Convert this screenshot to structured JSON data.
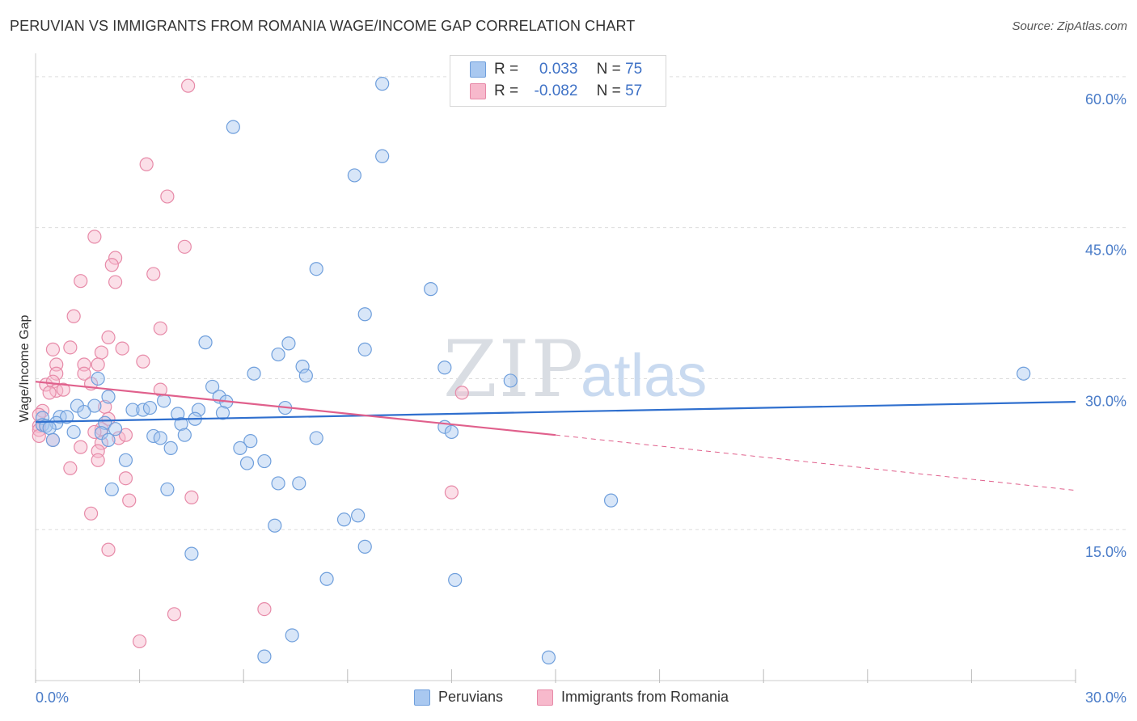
{
  "header": {
    "title": "PERUVIAN VS IMMIGRANTS FROM ROMANIA WAGE/INCOME GAP CORRELATION CHART",
    "source": "Source: ZipAtlas.com"
  },
  "watermark": {
    "zip": "ZIP",
    "atlas": "atlas"
  },
  "legend": {
    "rows": [
      {
        "r_label": "R =",
        "r_value": "0.033",
        "n_label": "N =",
        "n_value": "75"
      },
      {
        "r_label": "R =",
        "r_value": "-0.082",
        "n_label": "N =",
        "n_value": "57"
      }
    ]
  },
  "bottom_legend": {
    "peruvians": "Peruvians",
    "romania": "Immigrants from Romania"
  },
  "colors": {
    "blue_fill": "#a9c8f0",
    "blue_stroke": "#6f9fdc",
    "blue_line": "#2f6fce",
    "pink_fill": "#f7b9cc",
    "pink_stroke": "#e78aa8",
    "pink_line": "#e0608c",
    "grid": "#dddddd",
    "tick_text": "#4a7cc8"
  },
  "chart_data": {
    "type": "scatter",
    "title": "PERUVIAN VS IMMIGRANTS FROM ROMANIA WAGE/INCOME GAP CORRELATION CHART",
    "xlabel": "",
    "ylabel": "Wage/Income Gap",
    "xlim": [
      0,
      30
    ],
    "ylim": [
      0,
      62
    ],
    "x_tick_labels": [
      "0.0%",
      "30.0%"
    ],
    "y_ticks": [
      15,
      30,
      45,
      60
    ],
    "y_tick_labels": [
      "15.0%",
      "30.0%",
      "45.0%",
      "60.0%"
    ],
    "grid": true,
    "series": [
      {
        "name": "Peruvians",
        "r": 0.033,
        "n": 75,
        "trend": {
          "x": [
            0,
            30
          ],
          "y": [
            25.7,
            27.7
          ]
        },
        "points": [
          [
            10.0,
            59.3
          ],
          [
            5.7,
            55.0
          ],
          [
            10.0,
            52.1
          ],
          [
            9.2,
            50.2
          ],
          [
            8.1,
            40.9
          ],
          [
            11.4,
            38.9
          ],
          [
            9.5,
            36.4
          ],
          [
            4.9,
            33.6
          ],
          [
            7.3,
            33.5
          ],
          [
            7.0,
            32.4
          ],
          [
            9.5,
            32.9
          ],
          [
            7.7,
            31.2
          ],
          [
            11.8,
            31.1
          ],
          [
            6.3,
            30.5
          ],
          [
            7.8,
            30.3
          ],
          [
            13.7,
            29.8
          ],
          [
            28.5,
            30.5
          ],
          [
            1.8,
            30.0
          ],
          [
            5.1,
            29.2
          ],
          [
            2.1,
            28.2
          ],
          [
            5.3,
            28.2
          ],
          [
            3.7,
            27.8
          ],
          [
            5.5,
            27.7
          ],
          [
            1.2,
            27.3
          ],
          [
            1.7,
            27.3
          ],
          [
            2.8,
            26.9
          ],
          [
            3.1,
            26.9
          ],
          [
            3.3,
            27.1
          ],
          [
            7.2,
            27.1
          ],
          [
            4.7,
            26.9
          ],
          [
            1.4,
            26.7
          ],
          [
            4.1,
            26.5
          ],
          [
            5.4,
            26.6
          ],
          [
            0.7,
            26.2
          ],
          [
            0.9,
            26.2
          ],
          [
            0.2,
            26.1
          ],
          [
            4.6,
            26.0
          ],
          [
            0.6,
            25.6
          ],
          [
            2.0,
            25.6
          ],
          [
            4.2,
            25.5
          ],
          [
            0.2,
            25.4
          ],
          [
            0.3,
            25.3
          ],
          [
            0.4,
            25.1
          ],
          [
            2.3,
            25.0
          ],
          [
            11.8,
            25.2
          ],
          [
            12.0,
            24.7
          ],
          [
            1.9,
            24.6
          ],
          [
            1.1,
            24.7
          ],
          [
            3.4,
            24.3
          ],
          [
            3.6,
            24.1
          ],
          [
            4.3,
            24.4
          ],
          [
            8.1,
            24.1
          ],
          [
            2.1,
            23.9
          ],
          [
            0.5,
            23.9
          ],
          [
            6.2,
            23.8
          ],
          [
            5.9,
            23.1
          ],
          [
            3.9,
            23.1
          ],
          [
            2.6,
            21.9
          ],
          [
            6.1,
            21.6
          ],
          [
            6.6,
            21.8
          ],
          [
            7.0,
            19.6
          ],
          [
            7.6,
            19.6
          ],
          [
            2.2,
            19.0
          ],
          [
            3.8,
            19.0
          ],
          [
            16.6,
            17.9
          ],
          [
            9.3,
            16.4
          ],
          [
            8.9,
            16.0
          ],
          [
            6.9,
            15.4
          ],
          [
            9.5,
            13.3
          ],
          [
            4.5,
            12.6
          ],
          [
            8.4,
            10.1
          ],
          [
            12.1,
            10.0
          ],
          [
            7.4,
            4.5
          ],
          [
            6.6,
            2.4
          ],
          [
            14.8,
            2.3
          ]
        ]
      },
      {
        "name": "Immigrants from Romania",
        "r": -0.082,
        "n": 57,
        "trend": {
          "x": [
            0,
            15
          ],
          "y": [
            29.7,
            24.4
          ]
        },
        "trend_dashed": {
          "x": [
            15,
            30
          ],
          "y": [
            24.4,
            18.9
          ]
        },
        "points": [
          [
            4.4,
            59.1
          ],
          [
            3.2,
            51.3
          ],
          [
            3.8,
            48.1
          ],
          [
            1.7,
            44.1
          ],
          [
            4.3,
            43.1
          ],
          [
            2.3,
            42.0
          ],
          [
            2.2,
            41.3
          ],
          [
            3.4,
            40.4
          ],
          [
            1.3,
            39.7
          ],
          [
            2.3,
            39.6
          ],
          [
            1.1,
            36.2
          ],
          [
            3.6,
            35.0
          ],
          [
            2.1,
            34.1
          ],
          [
            2.5,
            33.0
          ],
          [
            1.0,
            33.1
          ],
          [
            0.5,
            32.9
          ],
          [
            1.9,
            32.6
          ],
          [
            3.1,
            31.7
          ],
          [
            0.6,
            31.4
          ],
          [
            1.4,
            31.4
          ],
          [
            1.4,
            30.5
          ],
          [
            0.6,
            30.5
          ],
          [
            1.8,
            31.4
          ],
          [
            1.6,
            29.5
          ],
          [
            0.3,
            29.4
          ],
          [
            0.5,
            29.7
          ],
          [
            0.6,
            28.8
          ],
          [
            0.8,
            28.9
          ],
          [
            0.4,
            28.6
          ],
          [
            3.6,
            28.9
          ],
          [
            12.3,
            28.6
          ],
          [
            2.0,
            27.2
          ],
          [
            0.2,
            26.8
          ],
          [
            0.1,
            26.4
          ],
          [
            0.1,
            25.3
          ],
          [
            0.1,
            24.9
          ],
          [
            0.1,
            24.3
          ],
          [
            2.1,
            26.0
          ],
          [
            1.9,
            25.0
          ],
          [
            2.4,
            24.1
          ],
          [
            1.7,
            24.7
          ],
          [
            1.9,
            23.6
          ],
          [
            0.5,
            23.9
          ],
          [
            1.3,
            23.2
          ],
          [
            1.8,
            22.8
          ],
          [
            2.6,
            24.4
          ],
          [
            1.8,
            21.9
          ],
          [
            1.0,
            21.1
          ],
          [
            2.6,
            20.1
          ],
          [
            12.0,
            18.7
          ],
          [
            4.5,
            18.2
          ],
          [
            2.7,
            17.9
          ],
          [
            1.6,
            16.6
          ],
          [
            2.1,
            13.0
          ],
          [
            6.6,
            7.1
          ],
          [
            4.0,
            6.6
          ],
          [
            3.0,
            3.9
          ]
        ]
      }
    ]
  }
}
